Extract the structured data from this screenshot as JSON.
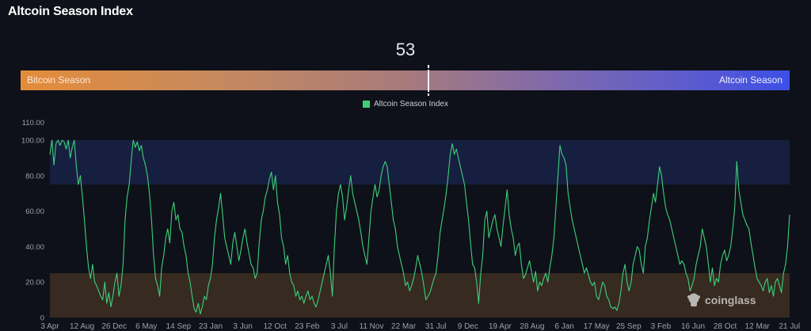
{
  "header": {
    "title": "Altcoin Season Index"
  },
  "gauge": {
    "current_value": "53",
    "left_label": "Bitcoin Season",
    "right_label": "Altcoin Season",
    "left_color": "#e38c3a",
    "right_color": "#3d4fe6"
  },
  "legend": {
    "label": "Altcoin Season Index",
    "color": "#3ecf7a"
  },
  "watermark": {
    "text": "coinglass"
  },
  "chart_data": {
    "type": "line",
    "title": "Altcoin Season Index",
    "xlabel": "",
    "ylabel": "",
    "ylim": [
      0,
      110
    ],
    "yticks": [
      "0",
      "20.00",
      "40.00",
      "60.00",
      "80.00",
      "100.00",
      "110.00"
    ],
    "ytick_values": [
      0,
      20,
      40,
      60,
      80,
      100,
      110
    ],
    "x_tick_labels": [
      "3 Apr",
      "12 Aug",
      "26 Dec",
      "6 May",
      "14 Sep",
      "23 Jan",
      "3 Jun",
      "12 Oct",
      "23 Feb",
      "3 Jul",
      "11 Nov",
      "22 Mar",
      "31 Jul",
      "9 Dec",
      "19 Apr",
      "28 Aug",
      "6 Jan",
      "17 May",
      "25 Sep",
      "3 Feb",
      "16 Jun",
      "28 Oct",
      "12 Mar",
      "21 Jul"
    ],
    "bands": [
      {
        "name": "Altcoin Season zone",
        "from": 75,
        "to": 100,
        "color": "#161f3f"
      },
      {
        "name": "Bitcoin Season zone",
        "from": 0,
        "to": 25,
        "color": "#362a21"
      }
    ],
    "grid": false,
    "legend_position": "top",
    "series": [
      {
        "name": "Altcoin Season Index",
        "color": "#3ecf7a",
        "values": [
          92,
          100,
          86,
          98,
          100,
          97,
          100,
          99,
          95,
          100,
          90,
          96,
          100,
          85,
          75,
          80,
          68,
          55,
          40,
          28,
          22,
          30,
          20,
          18,
          15,
          12,
          10,
          20,
          8,
          14,
          6,
          12,
          20,
          25,
          12,
          18,
          30,
          55,
          68,
          75,
          88,
          100,
          96,
          99,
          94,
          97,
          90,
          86,
          80,
          70,
          55,
          35,
          22,
          18,
          12,
          28,
          35,
          45,
          50,
          42,
          60,
          65,
          55,
          58,
          50,
          48,
          40,
          35,
          25,
          20,
          12,
          5,
          3,
          8,
          2,
          6,
          12,
          10,
          18,
          22,
          30,
          45,
          55,
          62,
          70,
          58,
          45,
          40,
          35,
          30,
          42,
          48,
          40,
          32,
          38,
          45,
          50,
          42,
          36,
          30,
          28,
          22,
          25,
          42,
          55,
          60,
          68,
          72,
          78,
          82,
          72,
          80,
          65,
          58,
          45,
          40,
          30,
          35,
          25,
          20,
          18,
          12,
          15,
          10,
          12,
          8,
          12,
          15,
          10,
          12,
          8,
          6,
          10,
          15,
          20,
          25,
          30,
          35,
          25,
          12,
          40,
          60,
          70,
          75,
          68,
          55,
          62,
          72,
          80,
          70,
          65,
          60,
          55,
          48,
          40,
          35,
          30,
          45,
          60,
          68,
          75,
          68,
          72,
          80,
          85,
          88,
          85,
          75,
          65,
          55,
          50,
          40,
          35,
          30,
          25,
          18,
          20,
          15,
          18,
          22,
          28,
          35,
          30,
          25,
          18,
          10,
          12,
          14,
          18,
          22,
          25,
          35,
          48,
          55,
          62,
          70,
          80,
          92,
          98,
          92,
          95,
          90,
          85,
          80,
          75,
          65,
          55,
          42,
          30,
          28,
          20,
          8,
          25,
          35,
          55,
          60,
          45,
          50,
          55,
          58,
          50,
          45,
          40,
          52,
          62,
          72,
          58,
          50,
          45,
          35,
          40,
          42,
          30,
          22,
          24,
          28,
          32,
          26,
          20,
          26,
          15,
          20,
          18,
          22,
          25,
          20,
          28,
          35,
          45,
          62,
          80,
          97,
          92,
          90,
          86,
          70,
          62,
          55,
          50,
          45,
          40,
          35,
          30,
          25,
          28,
          24,
          20,
          18,
          20,
          12,
          10,
          15,
          20,
          18,
          12,
          10,
          6,
          5,
          6,
          4,
          8,
          15,
          25,
          30,
          20,
          15,
          20,
          30,
          35,
          40,
          38,
          30,
          25,
          40,
          45,
          55,
          62,
          70,
          65,
          75,
          85,
          80,
          70,
          62,
          58,
          55,
          50,
          45,
          40,
          35,
          30,
          32,
          30,
          25,
          22,
          15,
          18,
          22,
          30,
          35,
          40,
          50,
          45,
          40,
          30,
          20,
          28,
          18,
          22,
          20,
          30,
          35,
          38,
          32,
          35,
          40,
          50,
          62,
          88,
          72,
          65,
          58,
          55,
          52,
          50,
          42,
          35,
          28,
          22,
          20,
          18,
          15,
          20,
          22,
          14,
          18,
          12,
          20,
          22,
          18,
          14,
          25,
          30,
          40,
          58
        ]
      }
    ]
  }
}
